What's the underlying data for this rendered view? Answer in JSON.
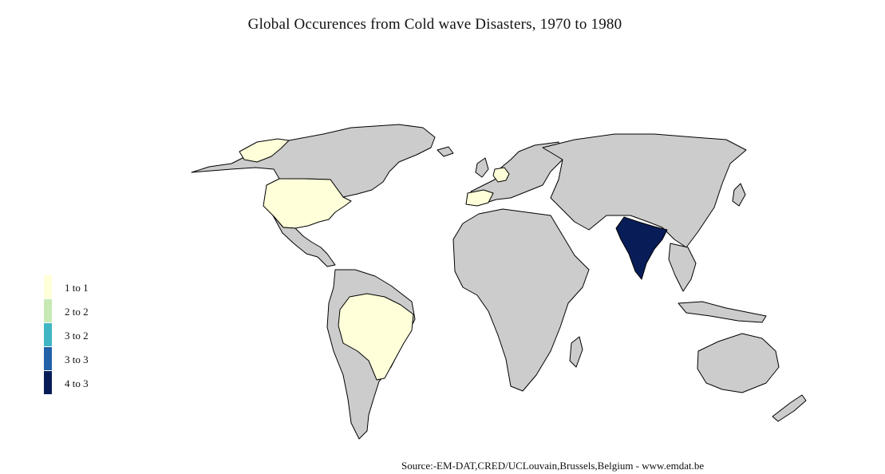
{
  "title": "Global Occurences from Cold wave Disasters, 1970 to 1980",
  "source": "Source:-EM-DAT,CRED/UCLouvain,Brussels,Belgium - www.emdat.be",
  "legend": [
    {
      "label": "1 to 1",
      "color": "#ffffd9"
    },
    {
      "label": "2 to 2",
      "color": "#c7e9b4"
    },
    {
      "label": "3 to 2",
      "color": "#41b6c4"
    },
    {
      "label": "3 to 3",
      "color": "#2260a8"
    },
    {
      "label": "4 to 3",
      "color": "#081d58"
    }
  ],
  "colors": {
    "no_data": "#cccccc",
    "border": "#000000",
    "background": "#ffffff"
  },
  "highlighted_countries": [
    {
      "name": "India",
      "bin": "4 to 3"
    },
    {
      "name": "United States",
      "bin": "1 to 1"
    },
    {
      "name": "Brazil",
      "bin": "1 to 1"
    },
    {
      "name": "Spain",
      "bin": "1 to 1"
    },
    {
      "name": "Germany",
      "bin": "1 to 1"
    },
    {
      "name": "Greenland",
      "bin": "1 to 1"
    }
  ]
}
